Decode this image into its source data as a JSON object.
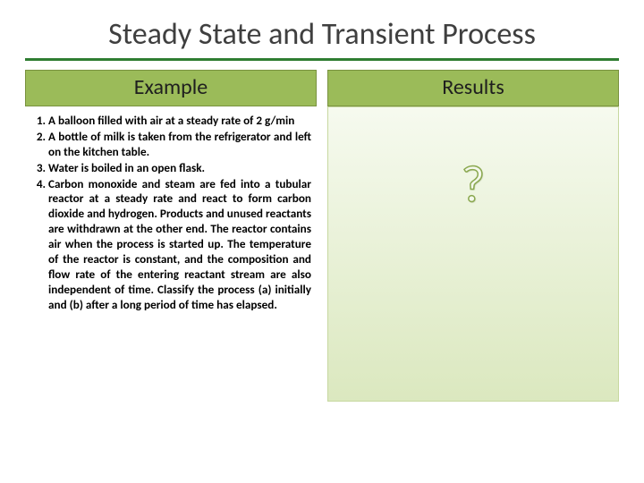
{
  "title": "Steady State and Transient Process",
  "accent_color": "#2f7d32",
  "header_bg": "#9bbb59",
  "header_border": "#79923f",
  "gradient_top": "#f6faef",
  "gradient_bottom": "#dbe8bf",
  "left": {
    "header": "Example",
    "items": [
      "A balloon filled with air at a steady rate of 2 g/min",
      "A bottle of milk is taken from the refrigerator and left on the kitchen table.",
      "Water is boiled in an open flask.",
      "Carbon monoxide and steam are fed into a tubular reactor at a steady rate and react to form carbon dioxide and hydrogen. Products and unused reactants are withdrawn at the other end. The reactor contains air when the process is started up. The temperature of the reactor is constant, and the composition and flow rate of the entering reactant stream are also independent of time. Classify the process (a) initially and (b) after a long period of time has elapsed."
    ]
  },
  "right": {
    "header": "Results",
    "placeholder": "?"
  },
  "font_sizes": {
    "title": 34,
    "header": 24,
    "body": 13.2,
    "qmark": 58
  }
}
